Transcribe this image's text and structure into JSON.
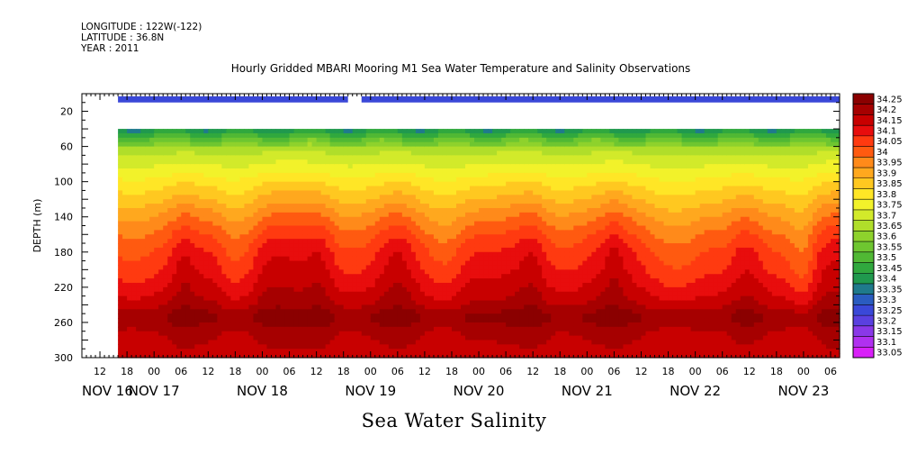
{
  "header": {
    "lines": [
      "LONGITUDE : 122W(-122)",
      "LATITUDE : 36.8N",
      "YEAR : 2011"
    ]
  },
  "footer_label": "Sea Water Salinity",
  "chart_data": {
    "type": "heatmap",
    "title": "Hourly Gridded MBARI Mooring M1 Sea Water Temperature and Salinity Observations",
    "xlabel": "",
    "ylabel": "DEPTH (m)",
    "x_units": "hours since NOV 16 00:00, 2011",
    "xlim": [
      8,
      176
    ],
    "ylim": [
      0,
      300
    ],
    "y_reversed": true,
    "y_ticks": [
      20,
      60,
      100,
      140,
      180,
      220,
      260,
      300
    ],
    "x_hour_ticks": [
      {
        "t": 12,
        "label": "12"
      },
      {
        "t": 18,
        "label": "18"
      },
      {
        "t": 24,
        "label": "00"
      },
      {
        "t": 30,
        "label": "06"
      },
      {
        "t": 36,
        "label": "12"
      },
      {
        "t": 42,
        "label": "18"
      },
      {
        "t": 48,
        "label": "00"
      },
      {
        "t": 54,
        "label": "06"
      },
      {
        "t": 60,
        "label": "12"
      },
      {
        "t": 66,
        "label": "18"
      },
      {
        "t": 72,
        "label": "00"
      },
      {
        "t": 78,
        "label": "06"
      },
      {
        "t": 84,
        "label": "12"
      },
      {
        "t": 90,
        "label": "18"
      },
      {
        "t": 96,
        "label": "00"
      },
      {
        "t": 102,
        "label": "06"
      },
      {
        "t": 108,
        "label": "12"
      },
      {
        "t": 114,
        "label": "18"
      },
      {
        "t": 120,
        "label": "00"
      },
      {
        "t": 126,
        "label": "06"
      },
      {
        "t": 132,
        "label": "12"
      },
      {
        "t": 138,
        "label": "18"
      },
      {
        "t": 144,
        "label": "00"
      },
      {
        "t": 150,
        "label": "06"
      },
      {
        "t": 156,
        "label": "12"
      },
      {
        "t": 162,
        "label": "18"
      },
      {
        "t": 168,
        "label": "00"
      },
      {
        "t": 174,
        "label": "06"
      }
    ],
    "x_day_labels": [
      {
        "t": 0,
        "label": "NOV 16"
      },
      {
        "t": 24,
        "label": "NOV 17"
      },
      {
        "t": 48,
        "label": "NOV 18"
      },
      {
        "t": 72,
        "label": "NOV 19"
      },
      {
        "t": 96,
        "label": "NOV 20"
      },
      {
        "t": 120,
        "label": "NOV 21"
      },
      {
        "t": 144,
        "label": "NOV 22"
      },
      {
        "t": 168,
        "label": "NOV 23"
      }
    ],
    "data_start_t": 16,
    "surface_gap_hours": [
      67,
      70
    ],
    "surface_depths_m": [
      3,
      10
    ],
    "surface_salinity": 33.27,
    "profile_top_depth_m": 40,
    "levels": [
      "34.25",
      "34.2",
      "34.15",
      "34.1",
      "34.05",
      "34",
      "33.95",
      "33.9",
      "33.85",
      "33.8",
      "33.75",
      "33.7",
      "33.65",
      "33.6",
      "33.55",
      "33.5",
      "33.45",
      "33.4",
      "33.35",
      "33.3",
      "33.25",
      "33.2",
      "33.15",
      "33.1",
      "33.05"
    ],
    "colors": [
      "#8b0000",
      "#a60000",
      "#c80000",
      "#e80d0d",
      "#ff3a10",
      "#ff5a10",
      "#ff8a1a",
      "#ffa81e",
      "#ffc820",
      "#ffe626",
      "#f2f22a",
      "#d2ea2a",
      "#b0de2a",
      "#8ed22c",
      "#6ec630",
      "#50b834",
      "#30a83e",
      "#20994e",
      "#1f7a8c",
      "#2a5cc0",
      "#3a48d8",
      "#5a40e0",
      "#8a38e8",
      "#b030f0",
      "#d820f8"
    ],
    "mean_profile": {
      "depth": [
        40,
        50,
        60,
        80,
        100,
        120,
        140,
        160,
        180,
        200,
        220,
        240,
        250,
        260,
        270,
        290,
        300
      ],
      "salinity": [
        33.42,
        33.55,
        33.64,
        33.72,
        33.8,
        33.87,
        33.94,
        34.0,
        34.05,
        34.08,
        34.12,
        34.17,
        34.22,
        34.22,
        34.18,
        34.16,
        34.15
      ]
    },
    "profile_anomalies": [
      {
        "t": 31,
        "width_h": 3,
        "shift": 0.06
      },
      {
        "t": 37,
        "width_h": 3,
        "shift": 0.05
      },
      {
        "t": 49,
        "width_h": 4,
        "shift": 0.04
      },
      {
        "t": 61,
        "width_h": 3,
        "shift": 0.05
      },
      {
        "t": 78,
        "width_h": 4,
        "shift": 0.05
      },
      {
        "t": 94,
        "width_h": 4,
        "shift": 0.06
      },
      {
        "t": 108,
        "width_h": 3,
        "shift": 0.05
      },
      {
        "t": 126,
        "width_h": 2,
        "shift": 0.04
      },
      {
        "t": 150,
        "width_h": 3,
        "shift": -0.03
      },
      {
        "t": 156,
        "width_h": 4,
        "shift": 0.04
      },
      {
        "t": 168,
        "width_h": 3,
        "shift": -0.08
      }
    ]
  }
}
